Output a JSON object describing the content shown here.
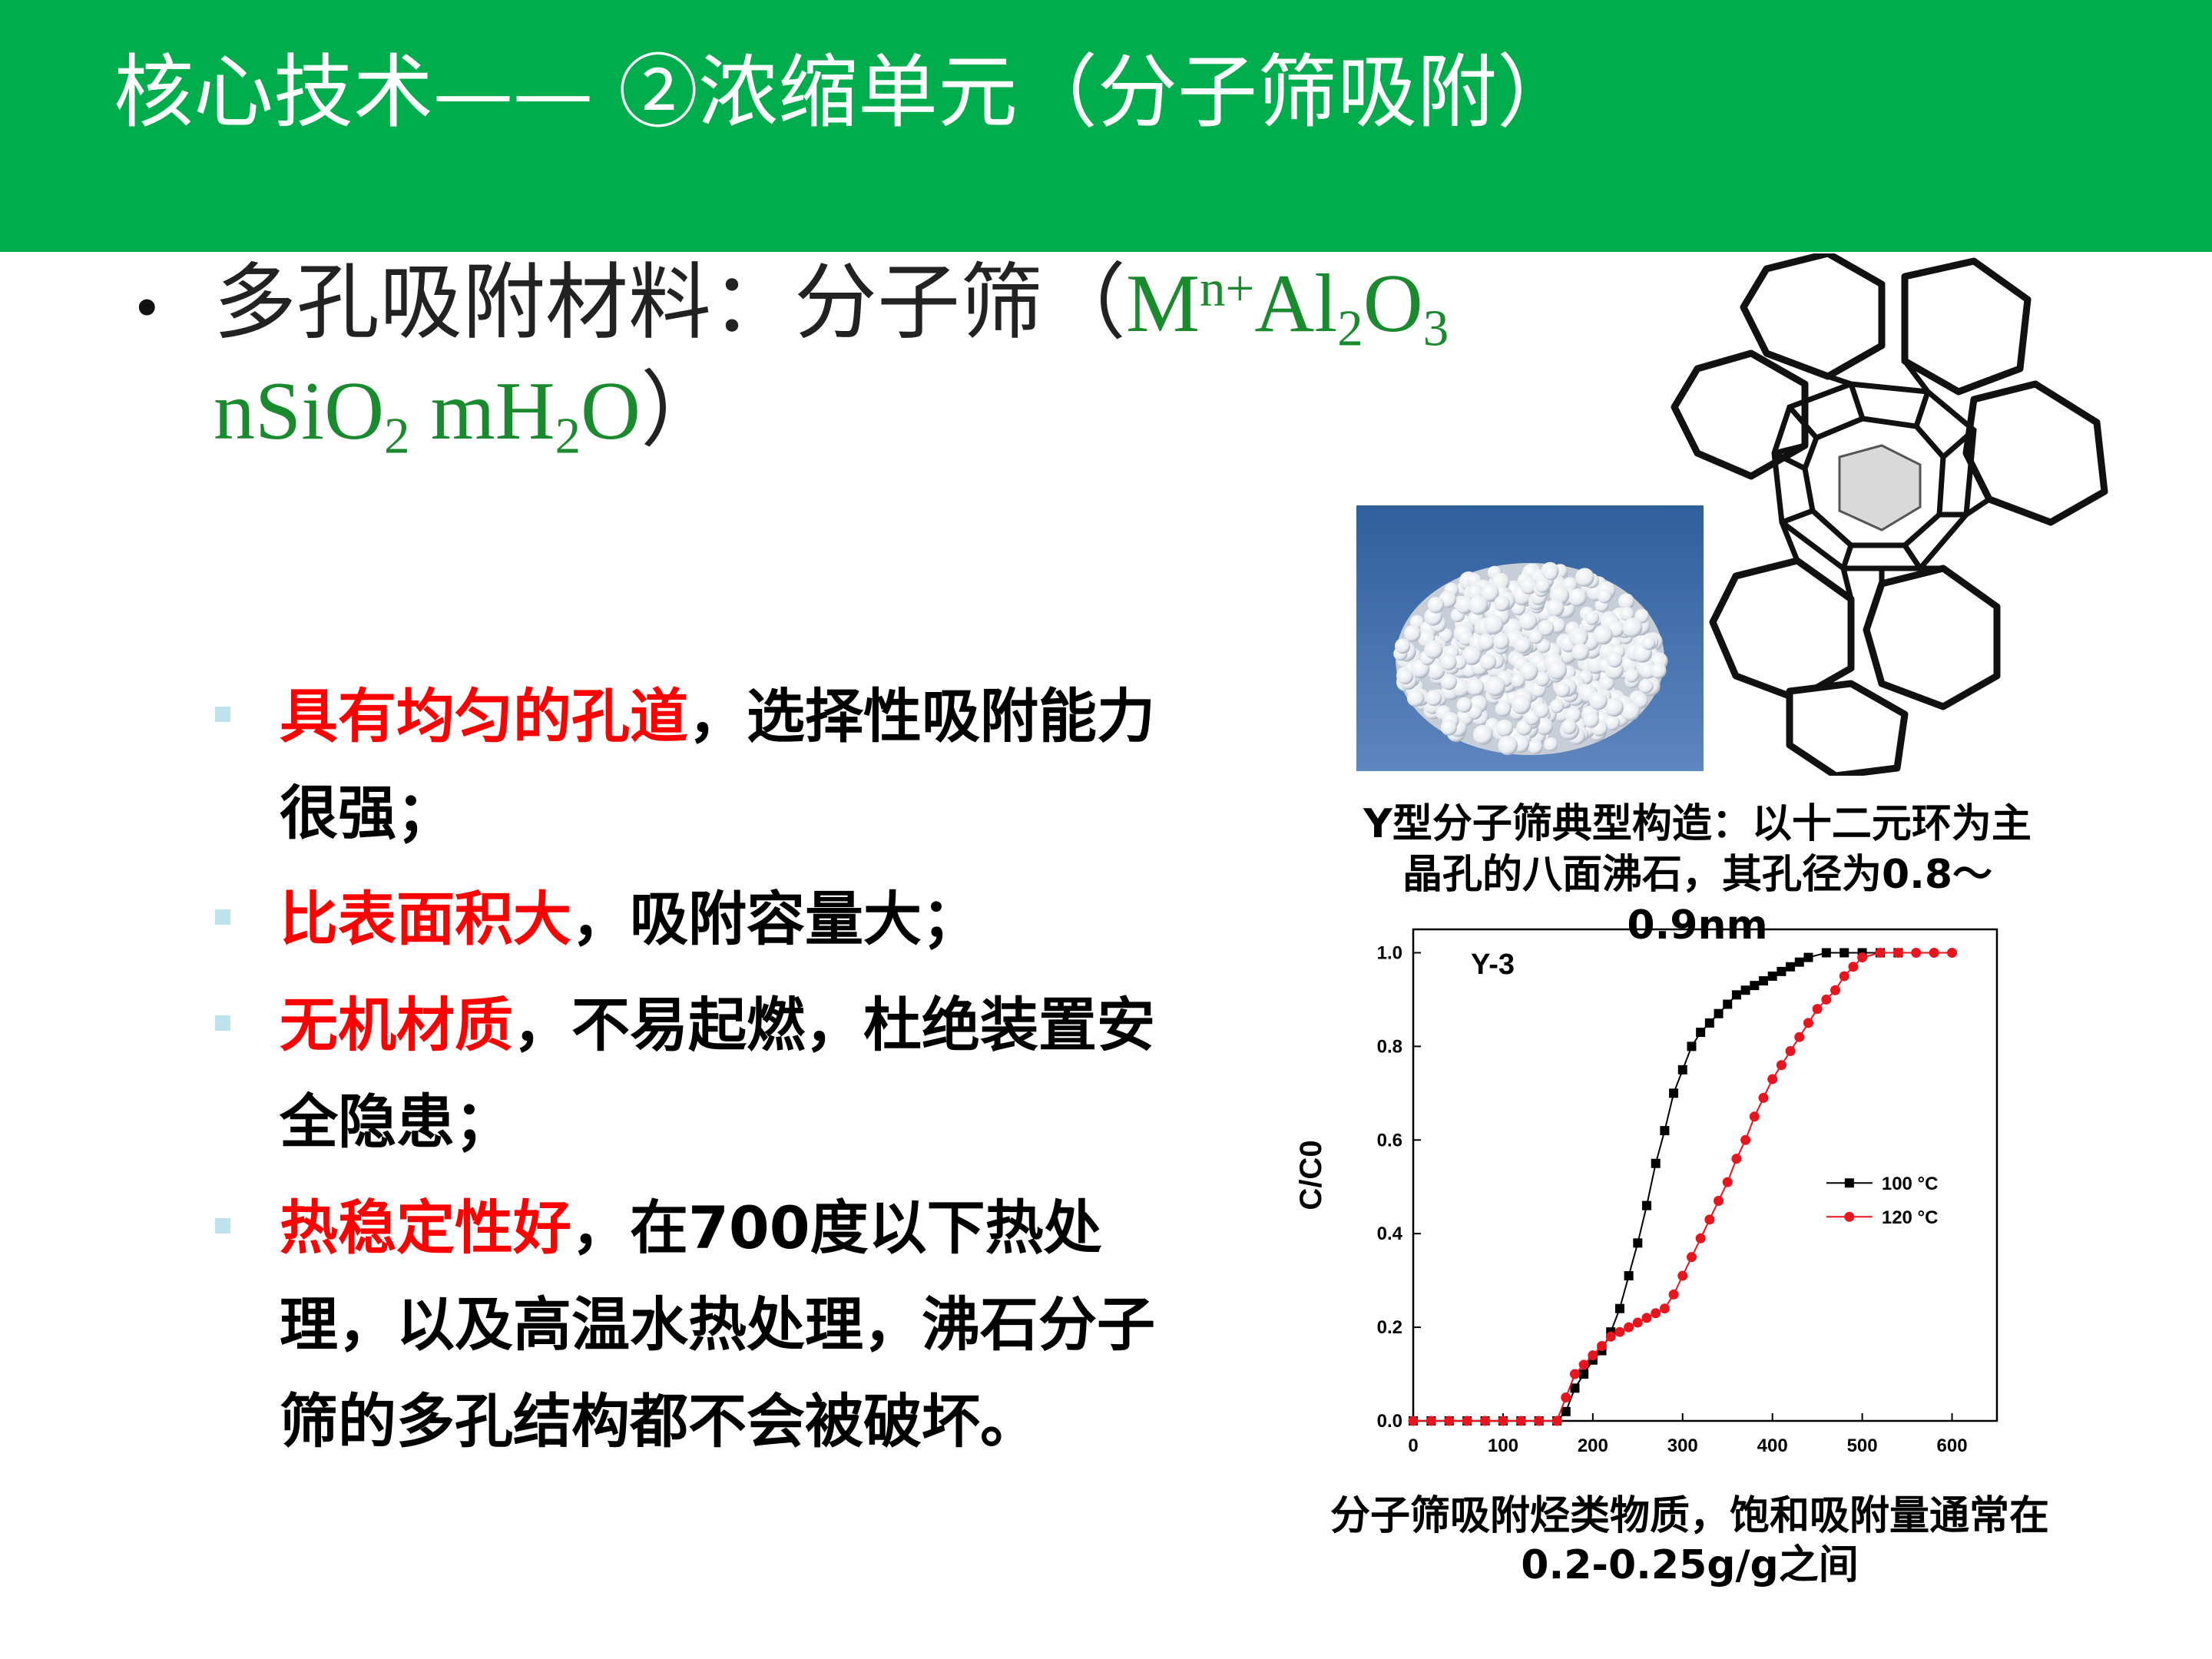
{
  "header": {
    "title": "核心技术—— ②浓缩单元（分子筛吸附）"
  },
  "main_point": {
    "bullet": "•",
    "prefix": "多孔吸附材料：分子筛（",
    "formula_line1": {
      "M": "M",
      "n_plus": "n+",
      "Al": "Al",
      "two": "2",
      "O": "O",
      "three": "3"
    },
    "formula_line2": {
      "nSi": "nSiO",
      "two_a": "2",
      "mH": " mH",
      "two_b": "2",
      "O": "O"
    },
    "suffix": "）"
  },
  "features": [
    {
      "highlight": "具有均匀的孔道",
      "rest": "，选择性吸附能力很强；"
    },
    {
      "highlight": "比表面积大",
      "rest": "，吸附容量大；"
    },
    {
      "highlight": "无机材质",
      "rest": "，不易起燃，杜绝装置安全隐患；"
    },
    {
      "highlight": "热稳定性好",
      "rest": "，在700度以下热处理，以及高温水热处理，沸石分子筛的多孔结构都不会被破坏。"
    }
  ],
  "figure_caption_top": "Y型分子筛典型构造：以十二元环为主晶孔的八面沸石，其孔径为0.8～0.9nm",
  "figure_caption_bottom": "分子筛吸附烃类物质，饱和吸附量通常在0.2-0.25g/g之间",
  "chart_data": {
    "type": "line",
    "title": "Y-3",
    "xlabel": "",
    "ylabel": "C/C0",
    "xlim": [
      0,
      650
    ],
    "ylim": [
      0,
      1.05
    ],
    "x_ticks": [
      "0",
      "100",
      "200",
      "300",
      "400",
      "500",
      "600"
    ],
    "y_ticks": [
      "0.0",
      "0.2",
      "0.4",
      "0.6",
      "0.8",
      "1.0"
    ],
    "legend_position": "right",
    "series": [
      {
        "name": "100 °C",
        "color": "#000000",
        "marker": "square",
        "x": [
          0,
          20,
          40,
          60,
          80,
          100,
          120,
          140,
          160,
          170,
          180,
          190,
          200,
          210,
          220,
          230,
          240,
          250,
          260,
          270,
          280,
          290,
          300,
          310,
          320,
          330,
          340,
          350,
          360,
          370,
          380,
          390,
          400,
          410,
          420,
          430,
          440,
          460,
          480,
          500,
          520,
          540
        ],
        "y": [
          0,
          0,
          0,
          0,
          0,
          0,
          0,
          0,
          0,
          0.02,
          0.07,
          0.1,
          0.13,
          0.15,
          0.19,
          0.24,
          0.31,
          0.38,
          0.46,
          0.55,
          0.62,
          0.7,
          0.75,
          0.8,
          0.83,
          0.85,
          0.87,
          0.89,
          0.91,
          0.92,
          0.93,
          0.94,
          0.95,
          0.96,
          0.97,
          0.98,
          0.99,
          1.0,
          1.0,
          1.0,
          1.0,
          1.0
        ]
      },
      {
        "name": "120 °C",
        "color": "#e8141e",
        "marker": "circle",
        "x": [
          0,
          20,
          40,
          60,
          80,
          100,
          120,
          140,
          160,
          170,
          180,
          190,
          200,
          210,
          220,
          230,
          240,
          250,
          260,
          270,
          280,
          290,
          300,
          310,
          320,
          330,
          340,
          350,
          360,
          370,
          380,
          390,
          400,
          410,
          420,
          430,
          440,
          450,
          460,
          470,
          480,
          490,
          500,
          520,
          540,
          560,
          580,
          600
        ],
        "y": [
          0,
          0,
          0,
          0,
          0,
          0,
          0,
          0,
          0,
          0.05,
          0.1,
          0.12,
          0.14,
          0.16,
          0.18,
          0.19,
          0.2,
          0.21,
          0.22,
          0.23,
          0.24,
          0.27,
          0.31,
          0.35,
          0.39,
          0.43,
          0.47,
          0.51,
          0.56,
          0.6,
          0.65,
          0.69,
          0.73,
          0.76,
          0.79,
          0.82,
          0.85,
          0.88,
          0.9,
          0.92,
          0.95,
          0.97,
          0.99,
          1.0,
          1.0,
          1.0,
          1.0,
          1.0
        ]
      }
    ]
  }
}
